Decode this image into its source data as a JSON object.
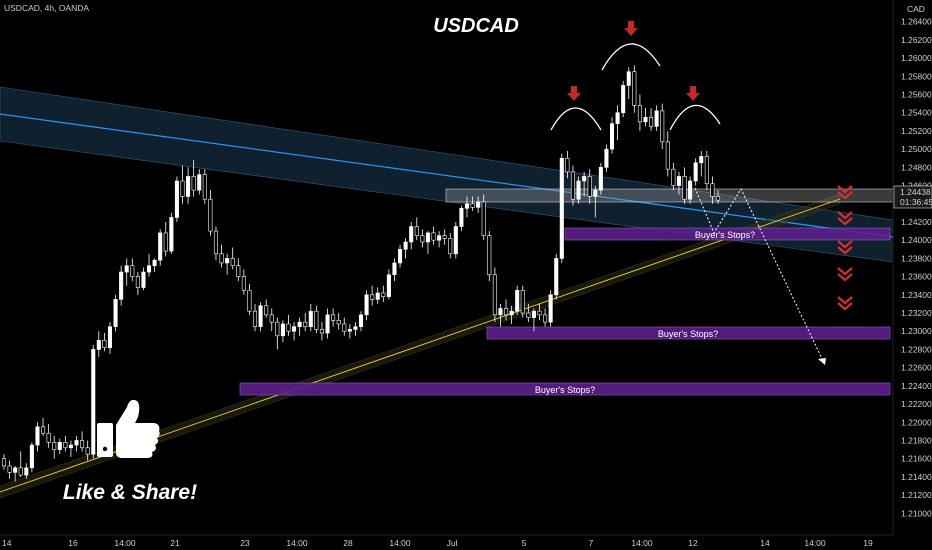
{
  "header": {
    "symbol_line": "USDCAD, 4h, OANDA",
    "currency": "CAD"
  },
  "colors": {
    "background": "#000000",
    "candle": "#ffffff",
    "channel_line": "#2196f3",
    "trendline": "#e8d44d",
    "zone": "#5b1f8a",
    "arrow": "#c62828",
    "price_label": "#e0e0e0"
  },
  "current_price": {
    "value": "1.24438",
    "countdown": "01:36:45"
  },
  "labels": {
    "zone_upper": "Buyer's Stops?",
    "zone_middle": "Buyer's Stops?",
    "zone_lower": "Buyer's Stops?",
    "like_share": "Like & Share!"
  },
  "icons": [
    "thumbs-up-icon",
    "arrow-down-icon",
    "chevron-down-icon"
  ],
  "chart_data": {
    "type": "candlestick",
    "title": "USDCAD",
    "x_ticks": [
      "14",
      "16",
      "14:00",
      "21",
      "23",
      "14:00",
      "28",
      "14:00",
      "Jul",
      "5",
      "7",
      "14:00",
      "12",
      "14",
      "14:00",
      "19"
    ],
    "y_ticks": [
      "1.26400",
      "1.26200",
      "1.26000",
      "1.25800",
      "1.25600",
      "1.25400",
      "1.25200",
      "1.25000",
      "1.24800",
      "1.24600",
      "1.24400",
      "1.24200",
      "1.24000",
      "1.23800",
      "1.23600",
      "1.23400",
      "1.23200",
      "1.23000",
      "1.22800",
      "1.22600",
      "1.22400",
      "1.22200",
      "1.22000",
      "1.21800",
      "1.21600",
      "1.21400",
      "1.21200",
      "1.21000"
    ],
    "ylim": [
      1.2085,
      1.2655
    ],
    "candles": [
      [
        1.216,
        1.2165,
        1.2148,
        1.2152
      ],
      [
        1.2152,
        1.2158,
        1.2138,
        1.2145
      ],
      [
        1.2145,
        1.2152,
        1.2135,
        1.215
      ],
      [
        1.215,
        1.2168,
        1.214,
        1.2142
      ],
      [
        1.2142,
        1.2155,
        1.2138,
        1.215
      ],
      [
        1.215,
        1.2178,
        1.2145,
        1.2175
      ],
      [
        1.2175,
        1.22,
        1.2168,
        1.2195
      ],
      [
        1.2195,
        1.2205,
        1.2185,
        1.2188
      ],
      [
        1.2188,
        1.2198,
        1.2172,
        1.2178
      ],
      [
        1.2178,
        1.2185,
        1.216,
        1.217
      ],
      [
        1.217,
        1.2182,
        1.2165,
        1.2178
      ],
      [
        1.2178,
        1.2185,
        1.2168,
        1.2172
      ],
      [
        1.2172,
        1.218,
        1.2162,
        1.2175
      ],
      [
        1.2175,
        1.2185,
        1.2168,
        1.218
      ],
      [
        1.218,
        1.219,
        1.2168,
        1.2172
      ],
      [
        1.2172,
        1.218,
        1.2158,
        1.2165
      ],
      [
        1.2165,
        1.2285,
        1.216,
        1.228
      ],
      [
        1.228,
        1.23,
        1.2272,
        1.229
      ],
      [
        1.229,
        1.2298,
        1.2278,
        1.2282
      ],
      [
        1.2282,
        1.231,
        1.2275,
        1.2305
      ],
      [
        1.2305,
        1.234,
        1.23,
        1.2335
      ],
      [
        1.2335,
        1.2372,
        1.2328,
        1.2365
      ],
      [
        1.2365,
        1.238,
        1.235,
        1.2372
      ],
      [
        1.2372,
        1.238,
        1.2355,
        1.236
      ],
      [
        1.236,
        1.2365,
        1.234,
        1.2348
      ],
      [
        1.2348,
        1.237,
        1.2345,
        1.2365
      ],
      [
        1.2365,
        1.2385,
        1.236,
        1.2372
      ],
      [
        1.2372,
        1.238,
        1.2365,
        1.2378
      ],
      [
        1.2378,
        1.2412,
        1.2372,
        1.2408
      ],
      [
        1.2408,
        1.242,
        1.2382,
        1.2388
      ],
      [
        1.2388,
        1.243,
        1.2385,
        1.2425
      ],
      [
        1.2425,
        1.247,
        1.242,
        1.2465
      ],
      [
        1.2465,
        1.2482,
        1.244,
        1.2448
      ],
      [
        1.2448,
        1.248,
        1.244,
        1.247
      ],
      [
        1.247,
        1.2488,
        1.2448,
        1.2455
      ],
      [
        1.2455,
        1.2478,
        1.245,
        1.2472
      ],
      [
        1.2472,
        1.2478,
        1.244,
        1.2445
      ],
      [
        1.2445,
        1.2455,
        1.2405,
        1.241
      ],
      [
        1.241,
        1.2415,
        1.2378,
        1.2385
      ],
      [
        1.2385,
        1.2395,
        1.237,
        1.2375
      ],
      [
        1.2375,
        1.2385,
        1.2362,
        1.238
      ],
      [
        1.238,
        1.2392,
        1.2368,
        1.2372
      ],
      [
        1.2372,
        1.238,
        1.2355,
        1.236
      ],
      [
        1.236,
        1.2368,
        1.234,
        1.2345
      ],
      [
        1.2345,
        1.2352,
        1.2318,
        1.2322
      ],
      [
        1.2322,
        1.233,
        1.23,
        1.2305
      ],
      [
        1.2305,
        1.2332,
        1.23,
        1.2328
      ],
      [
        1.2328,
        1.2335,
        1.2315,
        1.2318
      ],
      [
        1.2318,
        1.2325,
        1.23,
        1.231
      ],
      [
        1.231,
        1.2315,
        1.228,
        1.2295
      ],
      [
        1.2295,
        1.2312,
        1.2288,
        1.2308
      ],
      [
        1.2308,
        1.2318,
        1.2295,
        1.23
      ],
      [
        1.23,
        1.231,
        1.229,
        1.2305
      ],
      [
        1.2305,
        1.2315,
        1.2295,
        1.231
      ],
      [
        1.231,
        1.232,
        1.23,
        1.2305
      ],
      [
        1.2305,
        1.233,
        1.23,
        1.2322
      ],
      [
        1.2322,
        1.2328,
        1.2298,
        1.2302
      ],
      [
        1.2302,
        1.231,
        1.229,
        1.2298
      ],
      [
        1.2298,
        1.2325,
        1.2292,
        1.2318
      ],
      [
        1.2318,
        1.2325,
        1.2305,
        1.2312
      ],
      [
        1.2312,
        1.232,
        1.2302,
        1.2308
      ],
      [
        1.2308,
        1.2315,
        1.2295,
        1.23
      ],
      [
        1.23,
        1.2308,
        1.2292,
        1.2302
      ],
      [
        1.2302,
        1.231,
        1.2295,
        1.2305
      ],
      [
        1.2305,
        1.2322,
        1.23,
        1.2318
      ],
      [
        1.2318,
        1.2345,
        1.2312,
        1.234
      ],
      [
        1.234,
        1.235,
        1.2328,
        1.2335
      ],
      [
        1.2335,
        1.2348,
        1.233,
        1.2342
      ],
      [
        1.2342,
        1.235,
        1.2332,
        1.2338
      ],
      [
        1.2338,
        1.2368,
        1.2335,
        1.2362
      ],
      [
        1.2362,
        1.238,
        1.2355,
        1.2375
      ],
      [
        1.2375,
        1.2395,
        1.237,
        1.239
      ],
      [
        1.239,
        1.2402,
        1.238,
        1.2398
      ],
      [
        1.2398,
        1.242,
        1.239,
        1.2415
      ],
      [
        1.2415,
        1.2425,
        1.24,
        1.2405
      ],
      [
        1.2405,
        1.2412,
        1.2392,
        1.2398
      ],
      [
        1.2398,
        1.241,
        1.2385,
        1.2408
      ],
      [
        1.2408,
        1.2415,
        1.2395,
        1.24
      ],
      [
        1.24,
        1.241,
        1.2392,
        1.2405
      ],
      [
        1.2405,
        1.2412,
        1.2395,
        1.2402
      ],
      [
        1.2402,
        1.2408,
        1.238,
        1.2385
      ],
      [
        1.2385,
        1.242,
        1.238,
        1.2415
      ],
      [
        1.2415,
        1.2438,
        1.241,
        1.2435
      ],
      [
        1.2435,
        1.2448,
        1.2425,
        1.244
      ],
      [
        1.244,
        1.2448,
        1.2432,
        1.2436
      ],
      [
        1.2436,
        1.2448,
        1.243,
        1.2442
      ],
      [
        1.2442,
        1.245,
        1.24,
        1.2405
      ],
      [
        1.2405,
        1.241,
        1.2355,
        1.2362
      ],
      [
        1.2362,
        1.237,
        1.231,
        1.2318
      ],
      [
        1.2318,
        1.233,
        1.2305,
        1.2325
      ],
      [
        1.2325,
        1.2335,
        1.2312,
        1.2318
      ],
      [
        1.2318,
        1.2328,
        1.2308,
        1.2322
      ],
      [
        1.2322,
        1.235,
        1.2318,
        1.2345
      ],
      [
        1.2345,
        1.235,
        1.2315,
        1.232
      ],
      [
        1.232,
        1.233,
        1.231,
        1.2315
      ],
      [
        1.2315,
        1.2325,
        1.23,
        1.2322
      ],
      [
        1.2322,
        1.233,
        1.2312,
        1.2318
      ],
      [
        1.2318,
        1.2325,
        1.2305,
        1.231
      ],
      [
        1.231,
        1.2345,
        1.2305,
        1.234
      ],
      [
        1.234,
        1.2385,
        1.2335,
        1.238
      ],
      [
        1.238,
        1.2495,
        1.2375,
        1.249
      ],
      [
        1.249,
        1.2498,
        1.2468,
        1.2475
      ],
      [
        1.2475,
        1.2482,
        1.2438,
        1.2445
      ],
      [
        1.2445,
        1.247,
        1.244,
        1.2465
      ],
      [
        1.2465,
        1.2475,
        1.2448,
        1.247
      ],
      [
        1.247,
        1.2478,
        1.244,
        1.2448
      ],
      [
        1.2448,
        1.246,
        1.2425,
        1.2455
      ],
      [
        1.2455,
        1.2485,
        1.245,
        1.248
      ],
      [
        1.248,
        1.2505,
        1.2475,
        1.25
      ],
      [
        1.25,
        1.2535,
        1.2495,
        1.2528
      ],
      [
        1.2528,
        1.2548,
        1.251,
        1.254
      ],
      [
        1.254,
        1.2575,
        1.2535,
        1.257
      ],
      [
        1.257,
        1.259,
        1.2555,
        1.2585
      ],
      [
        1.2585,
        1.2592,
        1.254,
        1.2548
      ],
      [
        1.2548,
        1.256,
        1.252,
        1.253
      ],
      [
        1.253,
        1.2545,
        1.2525,
        1.2535
      ],
      [
        1.2535,
        1.2545,
        1.252,
        1.2525
      ],
      [
        1.2525,
        1.2548,
        1.252,
        1.2542
      ],
      [
        1.2542,
        1.255,
        1.25,
        1.2508
      ],
      [
        1.2508,
        1.252,
        1.247,
        1.2478
      ],
      [
        1.2478,
        1.2485,
        1.2455,
        1.246
      ],
      [
        1.246,
        1.2475,
        1.245,
        1.247
      ],
      [
        1.247,
        1.248,
        1.244,
        1.2445
      ],
      [
        1.2445,
        1.247,
        1.244,
        1.2465
      ],
      [
        1.2465,
        1.249,
        1.246,
        1.2485
      ],
      [
        1.2485,
        1.2498,
        1.247,
        1.2492
      ],
      [
        1.2492,
        1.2498,
        1.2455,
        1.2462
      ],
      [
        1.2462,
        1.247,
        1.244,
        1.2448
      ],
      [
        1.2448,
        1.2455,
        1.244,
        1.2444
      ]
    ]
  }
}
